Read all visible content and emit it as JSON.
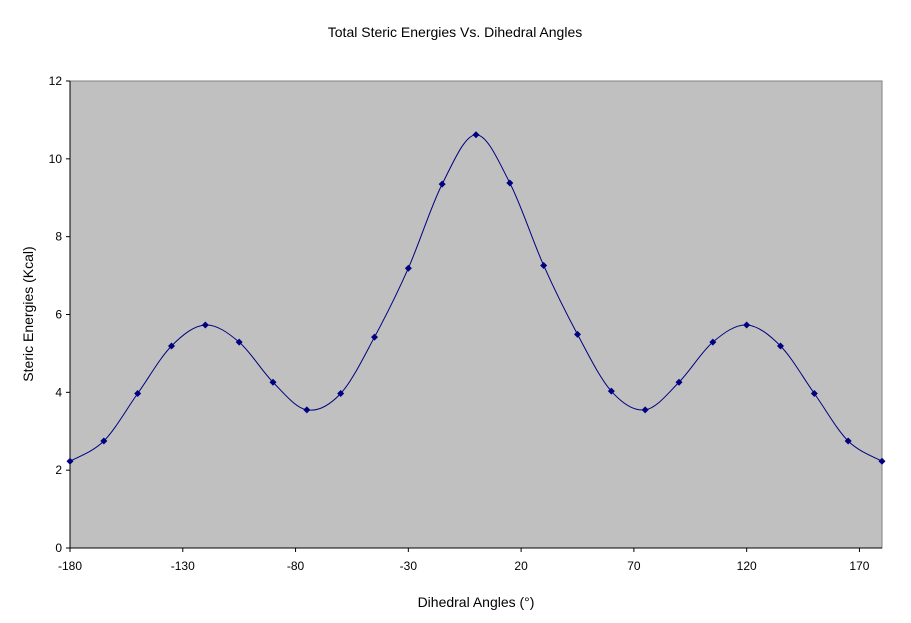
{
  "chart_data": {
    "type": "line",
    "title": "Total Steric Energies Vs. Dihedral Angles",
    "xlabel": "Dihedral Angles (°)",
    "ylabel": "Steric Energies (Kcal)",
    "xlim": [
      -180,
      180
    ],
    "ylim": [
      0,
      12
    ],
    "xticks": [
      -180,
      -130,
      -80,
      -30,
      20,
      70,
      120,
      170
    ],
    "yticks": [
      0,
      2,
      4,
      6,
      8,
      10,
      12
    ],
    "grid": false,
    "smooth": true,
    "colors": {
      "plot_background": "#c0c0c0",
      "series": "#000080"
    },
    "series": [
      {
        "x": [
          -180,
          -165,
          -150,
          -135,
          -120,
          -105,
          -90,
          -75,
          -60,
          -45,
          -30,
          -15,
          0,
          15,
          30,
          45,
          60,
          75,
          90,
          105,
          120,
          135,
          150,
          165,
          180
        ],
        "y": [
          2.23,
          2.75,
          3.97,
          5.19,
          5.73,
          5.29,
          4.26,
          3.55,
          3.97,
          5.42,
          7.19,
          9.35,
          10.62,
          9.38,
          7.26,
          5.49,
          4.03,
          3.55,
          4.26,
          5.29,
          5.73,
          5.19,
          3.97,
          2.75,
          2.23
        ]
      }
    ]
  }
}
